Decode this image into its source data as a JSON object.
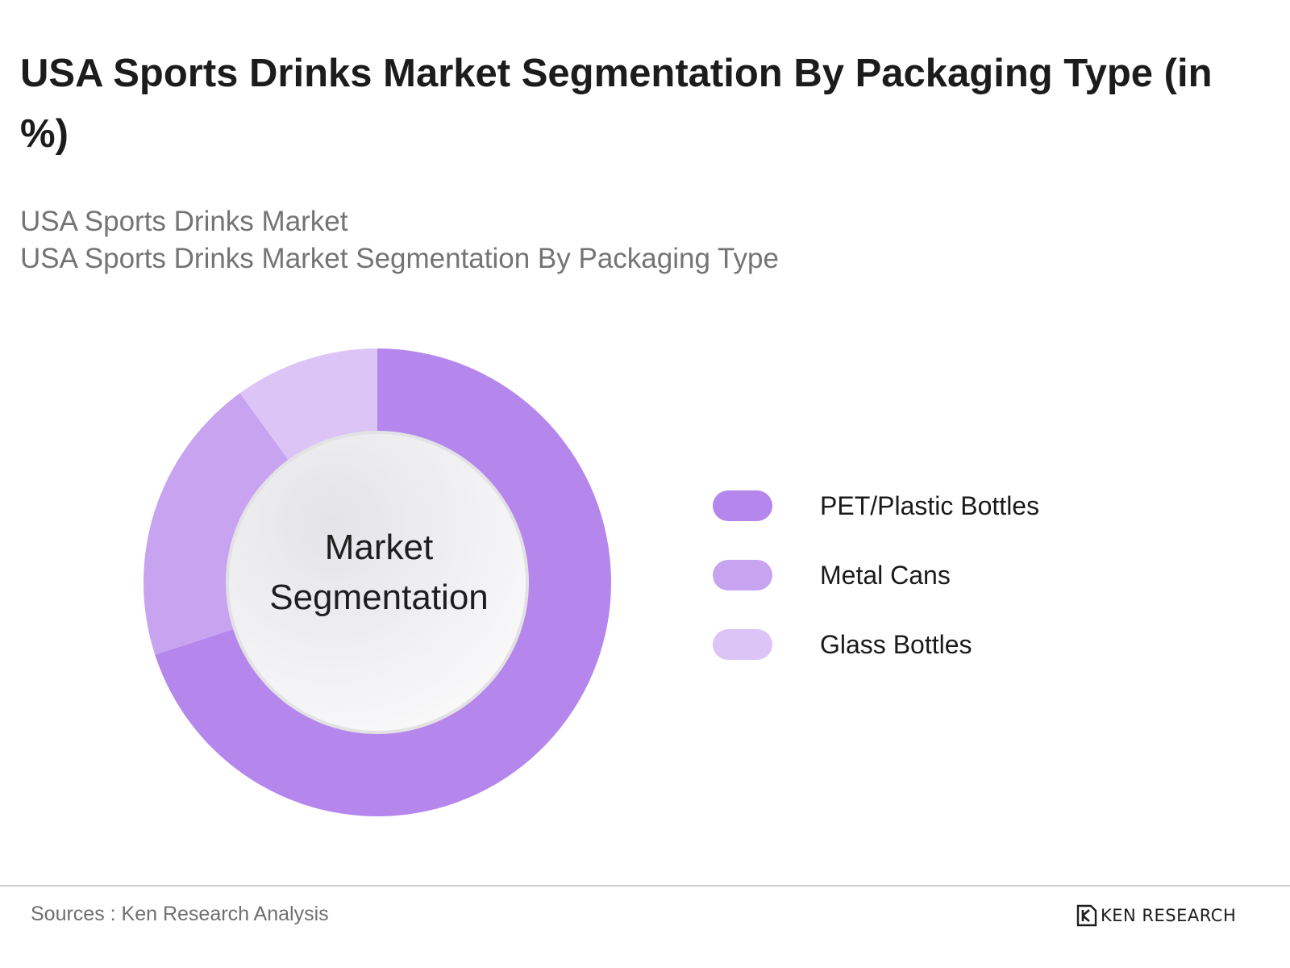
{
  "title": "USA Sports Drinks Market Segmentation By Packaging Type (in %)",
  "subtitle_lines": [
    "USA Sports Drinks Market",
    "USA Sports Drinks Market Segmentation By Packaging Type"
  ],
  "center_label": [
    "Market",
    "Segmentation"
  ],
  "source": "Sources : Ken Research Analysis",
  "logo": {
    "text": "KEN RESEARCH",
    "icon": "ken-research-logo-icon"
  },
  "colors": {
    "pet_plastic_bottles": "#b586ec",
    "metal_cans": "#c8a3f0",
    "glass_bottles": "#dcc4f7",
    "center_fill": "#f0f0f2",
    "divider": "#cfcfcf"
  },
  "chart_data": {
    "type": "pie",
    "variant": "donut",
    "title": "USA Sports Drinks Market Segmentation By Packaging Type (in %)",
    "categories": [
      "PET/Plastic Bottles",
      "Metal Cans",
      "Glass Bottles"
    ],
    "values": [
      70,
      20,
      10
    ],
    "unit": "%",
    "legend_position": "right"
  }
}
